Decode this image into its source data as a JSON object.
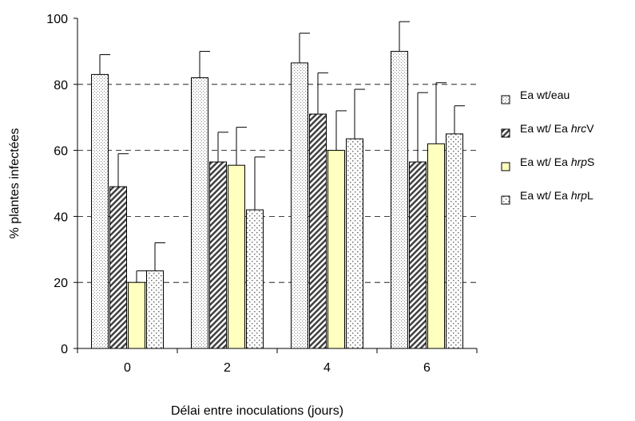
{
  "chart_data": {
    "type": "bar",
    "xlabel": "Délai entre inoculations (jours)",
    "ylabel": "% plantes infectées",
    "categories": [
      "0",
      "2",
      "4",
      "6"
    ],
    "ylim": [
      0,
      100
    ],
    "yticks": [
      "0",
      "20",
      "40",
      "60",
      "80",
      "100"
    ],
    "grid": "horizontal dashed at 20, 40, 60, 80",
    "legend_position": "right",
    "series": [
      {
        "name_parts": [
          {
            "text": "Ea wt/eau",
            "italic": false
          }
        ],
        "values": [
          83,
          82,
          86.5,
          90
        ],
        "errors": [
          6,
          8,
          9,
          9
        ],
        "fill": "#eeeeee",
        "pattern": "fine-dots"
      },
      {
        "name_parts": [
          {
            "text": "Ea wt/ Ea ",
            "italic": false
          },
          {
            "text": "hrc",
            "italic": true
          },
          {
            "text": "V",
            "italic": false
          }
        ],
        "values": [
          49,
          56.5,
          71,
          56.5
        ],
        "errors": [
          10,
          9,
          12.5,
          21
        ],
        "fill": "#d0d0d0",
        "pattern": "diagonal-hatch"
      },
      {
        "name_parts": [
          {
            "text": "Ea wt/ Ea ",
            "italic": false
          },
          {
            "text": "hrp",
            "italic": true
          },
          {
            "text": "S",
            "italic": false
          }
        ],
        "values": [
          20,
          55.5,
          60,
          62
        ],
        "errors": [
          3.5,
          11.5,
          12,
          18.5
        ],
        "fill": "#ffffc0",
        "pattern": "solid"
      },
      {
        "name_parts": [
          {
            "text": "Ea wt/ Ea ",
            "italic": false
          },
          {
            "text": "hrp",
            "italic": true
          },
          {
            "text": "L",
            "italic": false
          }
        ],
        "values": [
          23.5,
          42,
          63.5,
          65
        ],
        "errors": [
          8.5,
          16,
          15,
          8.5
        ],
        "fill": "#ffffff",
        "pattern": "sparse-checker"
      }
    ]
  }
}
